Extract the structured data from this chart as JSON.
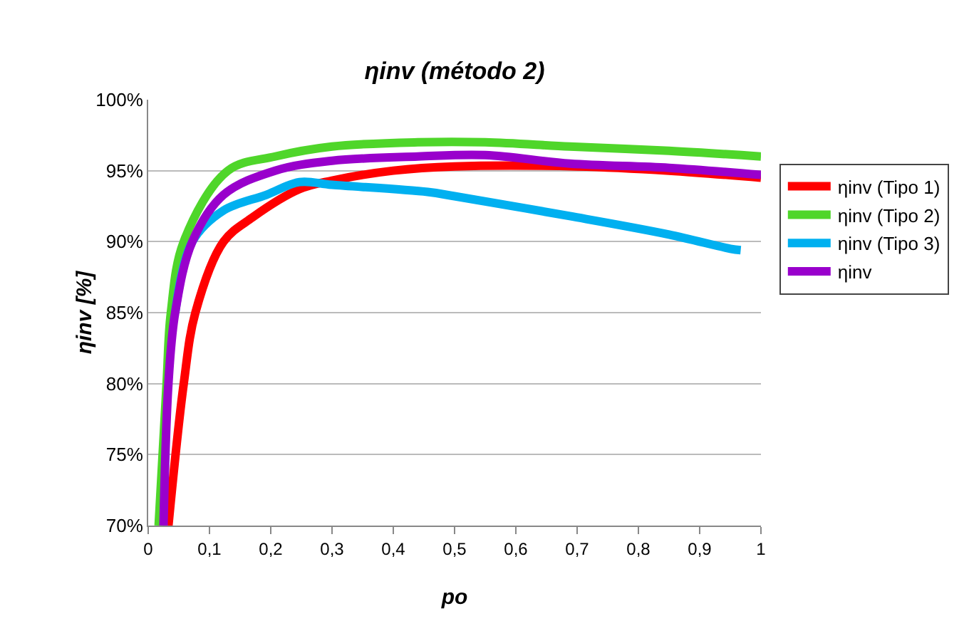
{
  "chart_data": {
    "type": "line",
    "title": "ηinv (método 2)",
    "xlabel": "po",
    "ylabel": "ηinv [%]",
    "xlim": [
      0,
      1
    ],
    "xticks": [
      {
        "value": 0,
        "label": "0"
      },
      {
        "value": 0.1,
        "label": "0,1"
      },
      {
        "value": 0.2,
        "label": "0,2"
      },
      {
        "value": 0.3,
        "label": "0,3"
      },
      {
        "value": 0.4,
        "label": "0,4"
      },
      {
        "value": 0.5,
        "label": "0,5"
      },
      {
        "value": 0.6,
        "label": "0,6"
      },
      {
        "value": 0.7,
        "label": "0,7"
      },
      {
        "value": 0.8,
        "label": "0,8"
      },
      {
        "value": 0.9,
        "label": "0,9"
      },
      {
        "value": 1,
        "label": "1"
      }
    ],
    "ylim": [
      70,
      100
    ],
    "yticks": [
      {
        "value": 70,
        "label": "70%"
      },
      {
        "value": 75,
        "label": "75%"
      },
      {
        "value": 80,
        "label": "80%"
      },
      {
        "value": 85,
        "label": "85%"
      },
      {
        "value": 90,
        "label": "90%"
      },
      {
        "value": 95,
        "label": "95%"
      },
      {
        "value": 100,
        "label": "100%"
      }
    ],
    "grid": "y",
    "legend": "right",
    "line_style": "solid",
    "series": [
      {
        "name": "ηinv (Tipo 1)",
        "color": "#ff0000",
        "x": [
          0.033,
          0.058,
          0.077,
          0.123,
          0.17,
          0.247,
          0.3,
          0.4,
          0.5,
          0.7,
          0.85,
          1
        ],
        "values": [
          70,
          80,
          85,
          90,
          91.7,
          93.7,
          94.3,
          95,
          95.3,
          95.3,
          95,
          94.5
        ]
      },
      {
        "name": "ηinv (Tipo 2)",
        "color": "#4fd62a",
        "x": [
          0.017,
          0.03,
          0.037,
          0.058,
          0.13,
          0.207,
          0.3,
          0.44,
          0.55,
          0.688,
          0.85,
          1
        ],
        "values": [
          70,
          80,
          85,
          90,
          95,
          96,
          96.7,
          97,
          97,
          96.7,
          96.4,
          96
        ]
      },
      {
        "name": "ηinv (Tipo 3)",
        "color": "#00b0f0",
        "x": [
          0.044,
          0.072,
          0.123,
          0.193,
          0.247,
          0.3,
          0.456,
          0.5,
          0.688,
          0.85,
          0.95,
          0.967
        ],
        "values": [
          85,
          90,
          92.2,
          93.3,
          94.2,
          94,
          93.5,
          93.2,
          91.8,
          90.5,
          89.5,
          89.4
        ]
      },
      {
        "name": "ηinv",
        "color": "#9900cc",
        "x": [
          0.025,
          0.033,
          0.044,
          0.072,
          0.123,
          0.207,
          0.3,
          0.44,
          0.55,
          0.688,
          0.85,
          1
        ],
        "values": [
          70,
          80,
          85,
          90,
          93.3,
          95,
          95.7,
          96,
          96.1,
          95.5,
          95.2,
          94.7
        ]
      }
    ]
  }
}
